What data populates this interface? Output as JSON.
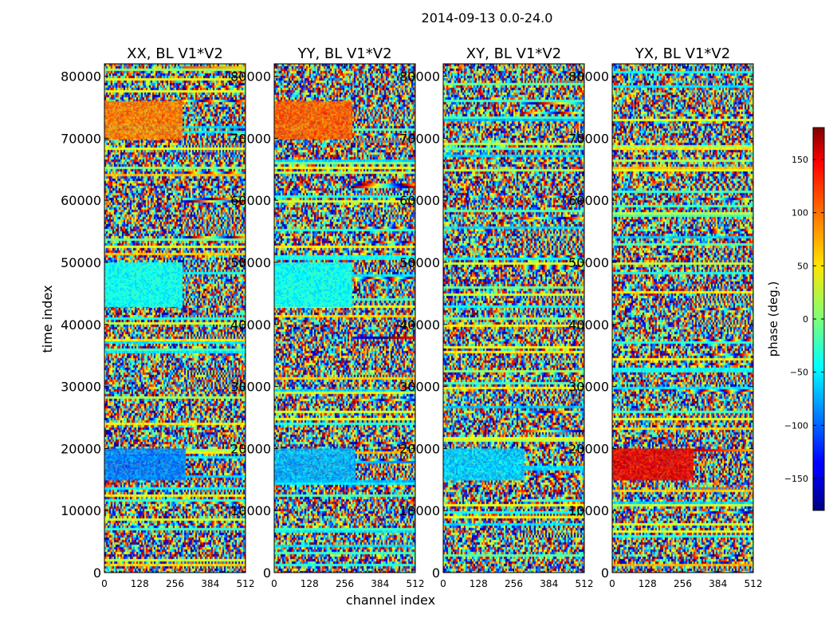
{
  "chart_data": {
    "type": "heatmap",
    "title": "2014-09-13 0.0-24.0",
    "xlabel": "channel index",
    "ylabel": "time index",
    "xlim": [
      0,
      512
    ],
    "ylim": [
      0,
      82000
    ],
    "x_ticks": [
      0,
      128,
      256,
      384,
      512
    ],
    "y_ticks": [
      0,
      10000,
      20000,
      30000,
      40000,
      50000,
      60000,
      70000,
      80000
    ],
    "colormap": "jet",
    "colorbar": {
      "label": "phase (deg.)",
      "range": [
        -180,
        180
      ],
      "ticks": [
        -150,
        -100,
        -50,
        0,
        50,
        100,
        150
      ],
      "tick_labels": [
        "−150",
        "−100",
        "−50",
        "0",
        "50",
        "100",
        "150"
      ]
    },
    "panels": [
      {
        "title": "XX, BL V1*V2",
        "features": [
          {
            "time_range": [
              15000,
              20000
            ],
            "channel_range": [
              0,
              290
            ],
            "phase": -90
          },
          {
            "time_range": [
              70000,
              76000
            ],
            "channel_range": [
              0,
              280
            ],
            "phase": 90
          },
          {
            "time_range": [
              43000,
              50000
            ],
            "channel_range": [
              0,
              280
            ],
            "phase": -40
          }
        ]
      },
      {
        "title": "YY, BL V1*V2",
        "features": [
          {
            "time_range": [
              15000,
              20000
            ],
            "channel_range": [
              0,
              290
            ],
            "phase": -70
          },
          {
            "time_range": [
              70000,
              76000
            ],
            "channel_range": [
              0,
              280
            ],
            "phase": 100
          },
          {
            "time_range": [
              43000,
              50000
            ],
            "channel_range": [
              0,
              280
            ],
            "phase": -40
          }
        ]
      },
      {
        "title": "XY, BL V1*V2",
        "features": [
          {
            "time_range": [
              15000,
              20000
            ],
            "channel_range": [
              0,
              290
            ],
            "phase": -60
          }
        ]
      },
      {
        "title": "YX, BL V1*V2",
        "features": [
          {
            "time_range": [
              15000,
              20000
            ],
            "channel_range": [
              0,
              290
            ],
            "phase": 140
          }
        ]
      }
    ]
  }
}
